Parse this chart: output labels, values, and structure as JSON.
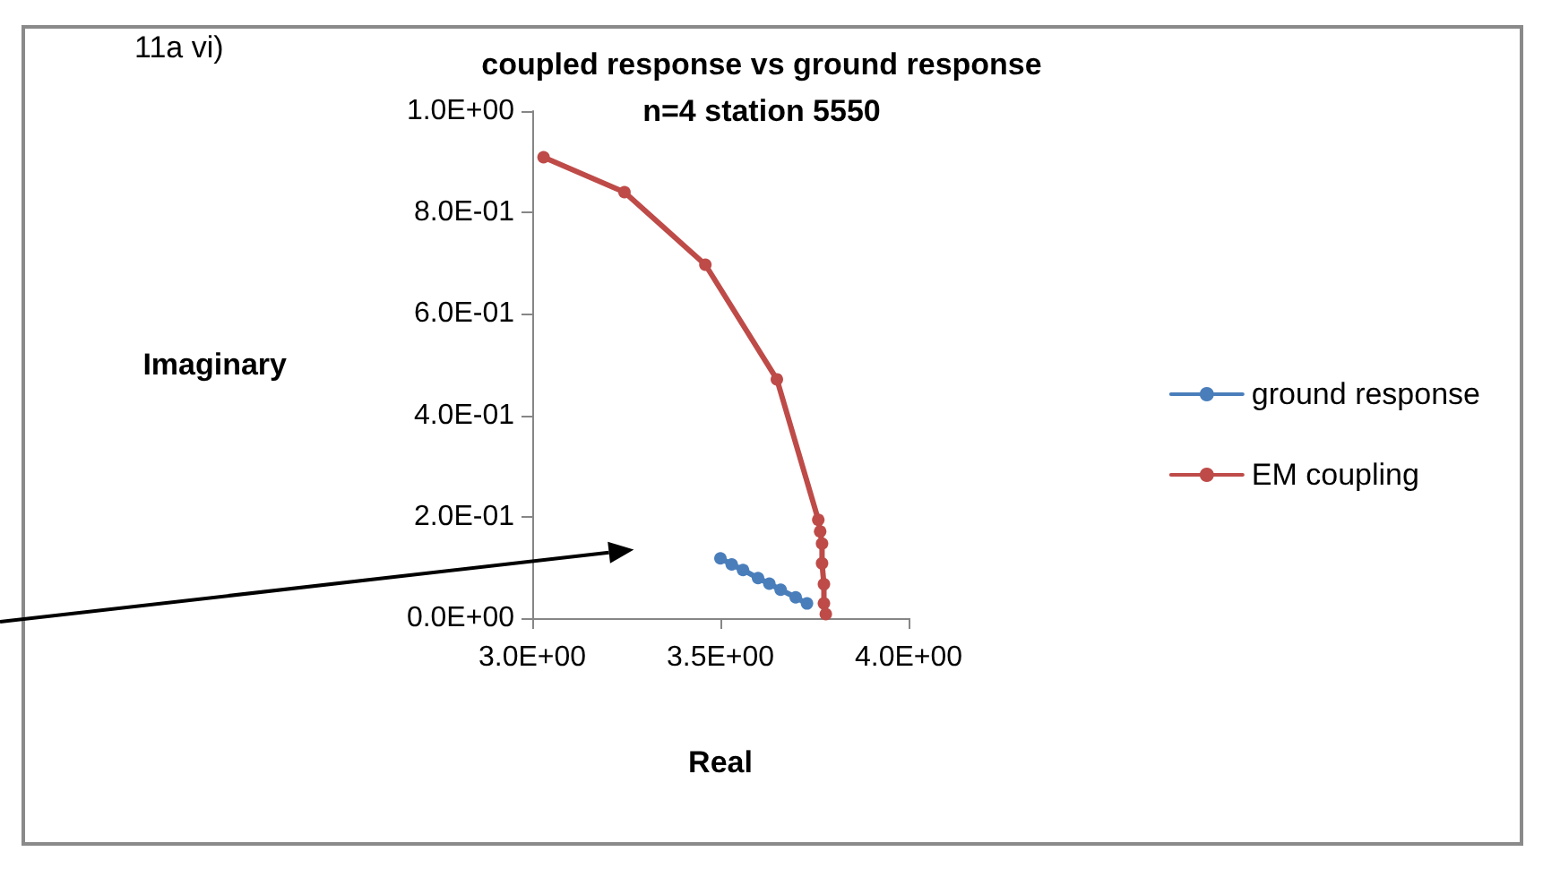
{
  "chart_data": {
    "type": "line",
    "title": "coupled response vs ground response\nn=4 station 5550",
    "xlabel": "Real",
    "ylabel": "Imaginary",
    "annotations": [
      "11a vi)"
    ],
    "xlim": [
      3.0,
      4.0
    ],
    "xticks": [
      {
        "value": 3.0,
        "label": "3.0E+00"
      },
      {
        "value": 3.5,
        "label": "3.5E+00"
      },
      {
        "value": 4.0,
        "label": "4.0E+00"
      }
    ],
    "ylim": [
      0,
      1.0
    ],
    "yticks": [
      {
        "value": 0,
        "label": "0.0E+00"
      },
      {
        "value": 0.2,
        "label": "2.0E-01"
      },
      {
        "value": 0.4,
        "label": "4.0E-01"
      },
      {
        "value": 0.6,
        "label": "6.0E-01"
      },
      {
        "value": 0.8,
        "label": "8.0E-01"
      },
      {
        "value": 1.0,
        "label": "1.0E+00"
      }
    ],
    "grid": false,
    "legend": "right",
    "marker": "circle",
    "line_style": "solid",
    "series": [
      {
        "name": "ground response",
        "color": "#4a7ebb",
        "x": [
          3.5,
          3.53,
          3.56,
          3.6,
          3.63,
          3.66,
          3.7,
          3.73
        ],
        "values": [
          0.118,
          0.106,
          0.095,
          0.079,
          0.068,
          0.056,
          0.041,
          0.029
        ]
      },
      {
        "name": "EM coupling",
        "color": "#be4b48",
        "x": [
          3.03,
          3.245,
          3.46,
          3.65,
          3.76,
          3.765,
          3.77,
          3.77,
          3.775,
          3.775,
          3.78
        ],
        "values": [
          0.909,
          0.84,
          0.697,
          0.471,
          0.194,
          0.171,
          0.147,
          0.108,
          0.067,
          0.029,
          0.008
        ]
      }
    ]
  }
}
